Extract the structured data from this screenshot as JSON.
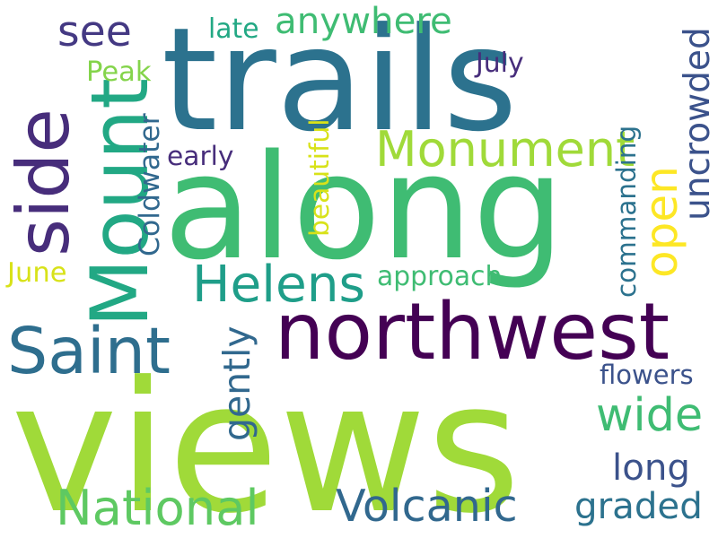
{
  "words": [
    {
      "text": "views",
      "color": "#a0da39"
    },
    {
      "text": "trails",
      "color": "#2c728e"
    },
    {
      "text": "along",
      "color": "#3fbc73"
    },
    {
      "text": "northwest",
      "color": "#440154"
    },
    {
      "text": "side",
      "color": "#472d7b"
    },
    {
      "text": "Mount",
      "color": "#22a884"
    },
    {
      "text": "Monument",
      "color": "#a0da39"
    },
    {
      "text": "Saint",
      "color": "#2e6e8e"
    },
    {
      "text": "Helens",
      "color": "#1f9e89"
    },
    {
      "text": "Volcanic",
      "color": "#31688e"
    },
    {
      "text": "National",
      "color": "#5ec962"
    },
    {
      "text": "see",
      "color": "#443983"
    },
    {
      "text": "anywhere",
      "color": "#3fbc73"
    },
    {
      "text": "uncrowded",
      "color": "#3b528b"
    },
    {
      "text": "open",
      "color": "#fde725"
    },
    {
      "text": "wide",
      "color": "#3fbc73"
    },
    {
      "text": "long",
      "color": "#3b528b"
    },
    {
      "text": "graded",
      "color": "#2c728e"
    },
    {
      "text": "gently",
      "color": "#31688e"
    },
    {
      "text": "flowers",
      "color": "#3b528b"
    },
    {
      "text": "approach",
      "color": "#3fbc73"
    },
    {
      "text": "commanding",
      "color": "#2c728e"
    },
    {
      "text": "beautiful",
      "color": "#d8e219"
    },
    {
      "text": "Coldwater",
      "color": "#31688e"
    },
    {
      "text": "early",
      "color": "#472d7b"
    },
    {
      "text": "July",
      "color": "#472d7b"
    },
    {
      "text": "late",
      "color": "#22a884"
    },
    {
      "text": "Peak",
      "color": "#84d44b"
    },
    {
      "text": "June",
      "color": "#d8e219"
    }
  ]
}
